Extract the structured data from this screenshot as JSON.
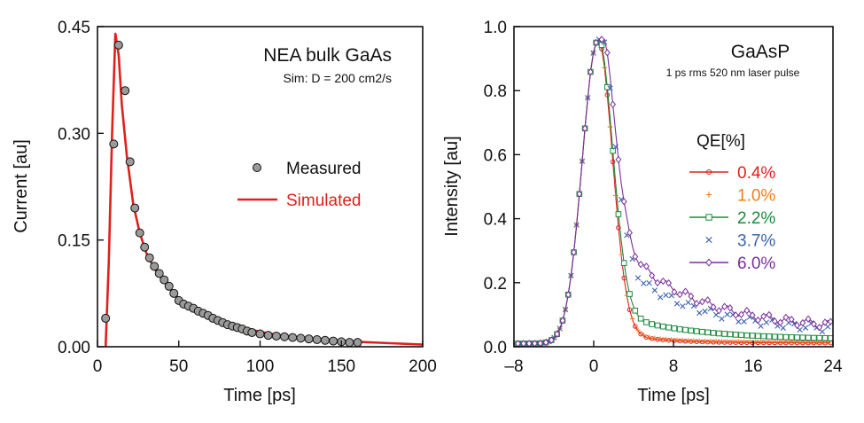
{
  "chart_data": [
    {
      "type": "scatter",
      "xlabel": "Time [ps]",
      "ylabel": "Current [au]",
      "xlim": [
        0,
        200
      ],
      "ylim": [
        0,
        0.45
      ],
      "xticks": [
        "0",
        "50",
        "100",
        "150",
        "200"
      ],
      "yticks": [
        "0.00",
        "0.15",
        "0.30",
        "0.45"
      ],
      "annotation_title": "NEA bulk GaAs",
      "annotation_sub": "Sim:  D = 200 cm2/s",
      "legend_position": "right",
      "series": [
        {
          "name": "Measured",
          "marker": "circle",
          "color": "#9a9a9a",
          "points": [
            [
              5,
              0.04
            ],
            [
              10,
              0.285
            ],
            [
              13,
              0.424
            ],
            [
              17,
              0.36
            ],
            [
              20,
              0.26
            ],
            [
              23,
              0.195
            ],
            [
              26,
              0.16
            ],
            [
              29,
              0.14
            ],
            [
              32,
              0.125
            ],
            [
              35,
              0.113
            ],
            [
              38,
              0.103
            ],
            [
              41,
              0.094
            ],
            [
              44,
              0.085
            ],
            [
              47,
              0.075
            ],
            [
              50,
              0.065
            ],
            [
              53,
              0.06
            ],
            [
              56,
              0.057
            ],
            [
              59,
              0.054
            ],
            [
              62,
              0.05
            ],
            [
              65,
              0.047
            ],
            [
              68,
              0.044
            ],
            [
              71,
              0.04
            ],
            [
              74,
              0.037
            ],
            [
              77,
              0.034
            ],
            [
              80,
              0.031
            ],
            [
              83,
              0.029
            ],
            [
              86,
              0.027
            ],
            [
              89,
              0.025
            ],
            [
              92,
              0.022
            ],
            [
              95,
              0.02
            ],
            [
              100,
              0.018
            ],
            [
              105,
              0.016
            ],
            [
              110,
              0.015
            ],
            [
              115,
              0.014
            ],
            [
              120,
              0.013
            ],
            [
              125,
              0.012
            ],
            [
              130,
              0.011
            ],
            [
              135,
              0.01
            ],
            [
              140,
              0.009
            ],
            [
              145,
              0.008
            ],
            [
              150,
              0.007
            ],
            [
              155,
              0.006
            ],
            [
              160,
              0.006
            ]
          ]
        },
        {
          "name": "Simulated",
          "marker": "line",
          "color": "#e0201b",
          "points": [
            [
              5,
              0.0
            ],
            [
              7,
              0.12
            ],
            [
              9,
              0.3
            ],
            [
              11,
              0.44
            ],
            [
              13,
              0.41
            ],
            [
              15,
              0.34
            ],
            [
              18,
              0.27
            ],
            [
              22,
              0.2
            ],
            [
              26,
              0.16
            ],
            [
              30,
              0.132
            ],
            [
              35,
              0.11
            ],
            [
              40,
              0.094
            ],
            [
              45,
              0.08
            ],
            [
              50,
              0.068
            ],
            [
              55,
              0.06
            ],
            [
              60,
              0.053
            ],
            [
              70,
              0.042
            ],
            [
              80,
              0.034
            ],
            [
              90,
              0.027
            ],
            [
              100,
              0.021
            ],
            [
              110,
              0.017
            ],
            [
              120,
              0.014
            ],
            [
              140,
              0.01
            ],
            [
              160,
              0.007
            ],
            [
              180,
              0.005
            ],
            [
              200,
              0.003
            ]
          ]
        }
      ]
    },
    {
      "type": "line",
      "xlabel": "Time [ps]",
      "ylabel": "Intensity [au]",
      "xlim": [
        -8,
        24
      ],
      "ylim": [
        0,
        1.0
      ],
      "xticks": [
        "–8",
        "0",
        "8",
        "16",
        "24"
      ],
      "yticks": [
        "0.0",
        "0.2",
        "0.4",
        "0.6",
        "0.8",
        "1.0"
      ],
      "annotation_title": "GaAsP",
      "annotation_sub": "1 ps rms 520 nm laser pulse",
      "legend_title": "QE[%]",
      "legend_position": "right",
      "series": [
        {
          "name": "0.4%",
          "color": "#e0201b",
          "marker": "circle-open",
          "line": true,
          "tail": 0.005
        },
        {
          "name": "1.0%",
          "color": "#f07d1a",
          "marker": "plus",
          "line": false,
          "tail": 0.012
        },
        {
          "name": "2.2%",
          "color": "#1a8a3c",
          "marker": "square-open",
          "line": true,
          "tail": 0.035
        },
        {
          "name": "3.7%",
          "color": "#3a63b0",
          "marker": "cross",
          "line": false,
          "tail": 0.1
        },
        {
          "name": "6.0%",
          "color": "#7a2f9a",
          "marker": "diamond-open",
          "line": true,
          "tail": 0.125
        }
      ]
    }
  ]
}
